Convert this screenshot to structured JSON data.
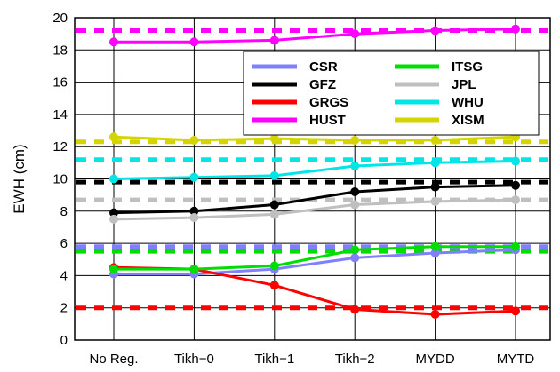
{
  "chart_data": {
    "type": "line",
    "title": "",
    "xlabel": "",
    "ylabel": "EWH (cm)",
    "categories": [
      "No Reg.",
      "Tikh−0",
      "Tikh−1",
      "Tikh−2",
      "MYDD",
      "MYTD"
    ],
    "ylim": [
      0,
      20
    ],
    "yticks": [
      0,
      2,
      4,
      6,
      8,
      10,
      12,
      14,
      16,
      18,
      20
    ],
    "grid": true,
    "legend_position": "top-right",
    "series": [
      {
        "name": "CSR",
        "color": "#8080ff",
        "values": [
          4.1,
          4.1,
          4.4,
          5.1,
          5.4,
          5.6
        ],
        "reference": 5.8
      },
      {
        "name": "GFZ",
        "color": "#000000",
        "values": [
          7.9,
          8.0,
          8.4,
          9.2,
          9.5,
          9.6
        ],
        "reference": 9.8
      },
      {
        "name": "GRGS",
        "color": "#ff0000",
        "values": [
          4.5,
          4.4,
          3.4,
          1.9,
          1.6,
          1.8
        ],
        "reference": 2.0
      },
      {
        "name": "HUST",
        "color": "#ff00ff",
        "values": [
          18.5,
          18.5,
          18.6,
          19.0,
          19.2,
          19.3
        ],
        "reference": 19.2
      },
      {
        "name": "ITSG",
        "color": "#00dd00",
        "values": [
          4.4,
          4.4,
          4.6,
          5.6,
          5.8,
          5.8
        ],
        "reference": 5.5
      },
      {
        "name": "JPL",
        "color": "#bfbfbf",
        "values": [
          7.5,
          7.6,
          7.8,
          8.4,
          8.6,
          8.7
        ],
        "reference": 8.7
      },
      {
        "name": "WHU",
        "color": "#00e5e5",
        "values": [
          10.0,
          10.1,
          10.2,
          10.8,
          11.0,
          11.1
        ],
        "reference": 11.2
      },
      {
        "name": "XISM",
        "color": "#d4d400",
        "values": [
          12.6,
          12.4,
          12.5,
          12.4,
          12.4,
          12.6
        ],
        "reference": 12.3
      }
    ]
  }
}
